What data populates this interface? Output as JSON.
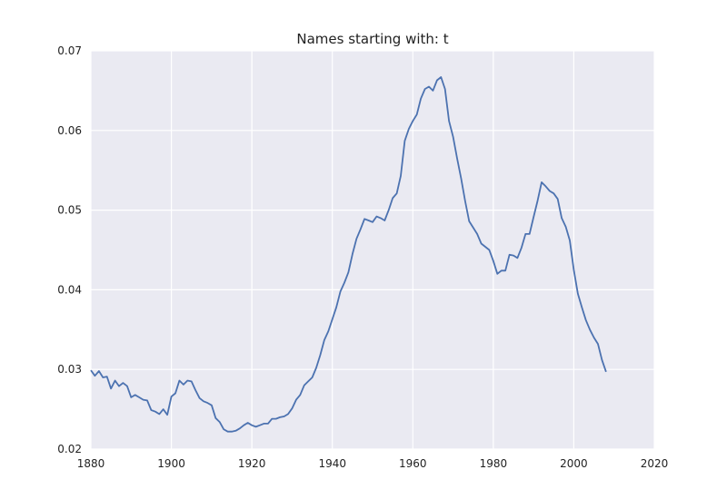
{
  "chart_data": {
    "type": "line",
    "title": "Names starting with: t",
    "xlabel": "",
    "ylabel": "",
    "xlim": [
      1880,
      2020
    ],
    "ylim": [
      0.02,
      0.07
    ],
    "x_ticks": [
      1880,
      1900,
      1920,
      1940,
      1960,
      1980,
      2000,
      2020
    ],
    "y_ticks": [
      0.02,
      0.03,
      0.04,
      0.05,
      0.06,
      0.07
    ],
    "x_tick_labels": [
      "1880",
      "1900",
      "1920",
      "1940",
      "1960",
      "1980",
      "2000",
      "2020"
    ],
    "y_tick_labels": [
      "0.02",
      "0.03",
      "0.04",
      "0.05",
      "0.06",
      "0.07"
    ],
    "grid": true,
    "plot_background": "#eaeaf2",
    "series": [
      {
        "color": "#4c72b0",
        "x": [
          1880,
          1881,
          1882,
          1883,
          1884,
          1885,
          1886,
          1887,
          1888,
          1889,
          1890,
          1891,
          1892,
          1893,
          1894,
          1895,
          1896,
          1897,
          1898,
          1899,
          1900,
          1901,
          1902,
          1903,
          1904,
          1905,
          1906,
          1907,
          1908,
          1909,
          1910,
          1911,
          1912,
          1913,
          1914,
          1915,
          1916,
          1917,
          1918,
          1919,
          1920,
          1921,
          1922,
          1923,
          1924,
          1925,
          1926,
          1927,
          1928,
          1929,
          1930,
          1931,
          1932,
          1933,
          1934,
          1935,
          1936,
          1937,
          1938,
          1939,
          1940,
          1941,
          1942,
          1943,
          1944,
          1945,
          1946,
          1947,
          1948,
          1949,
          1950,
          1951,
          1952,
          1953,
          1954,
          1955,
          1956,
          1957,
          1958,
          1959,
          1960,
          1961,
          1962,
          1963,
          1964,
          1965,
          1966,
          1967,
          1968,
          1969,
          1970,
          1971,
          1972,
          1973,
          1974,
          1975,
          1976,
          1977,
          1978,
          1979,
          1980,
          1981,
          1982,
          1983,
          1984,
          1985,
          1986,
          1987,
          1988,
          1989,
          1990,
          1991,
          1992,
          1993,
          1994,
          1995,
          1996,
          1997,
          1998,
          1999,
          2000,
          2001,
          2002,
          2003,
          2004,
          2005,
          2006,
          2007,
          2008
        ],
        "values": [
          0.0299,
          0.0292,
          0.0298,
          0.029,
          0.0291,
          0.0276,
          0.0286,
          0.0279,
          0.0283,
          0.0279,
          0.0265,
          0.0268,
          0.0265,
          0.0262,
          0.0261,
          0.0249,
          0.0247,
          0.0244,
          0.025,
          0.0243,
          0.0266,
          0.027,
          0.0286,
          0.0281,
          0.0286,
          0.0285,
          0.0274,
          0.0264,
          0.026,
          0.0258,
          0.0255,
          0.0239,
          0.0234,
          0.0225,
          0.0222,
          0.0222,
          0.0223,
          0.0226,
          0.023,
          0.0233,
          0.023,
          0.0228,
          0.023,
          0.0232,
          0.0232,
          0.0238,
          0.0238,
          0.024,
          0.0241,
          0.0244,
          0.0251,
          0.0262,
          0.0268,
          0.028,
          0.0285,
          0.029,
          0.0302,
          0.0318,
          0.0337,
          0.0348,
          0.0363,
          0.0378,
          0.0398,
          0.0409,
          0.0422,
          0.0445,
          0.0464,
          0.0476,
          0.0489,
          0.0487,
          0.0485,
          0.0492,
          0.049,
          0.0487,
          0.05,
          0.0515,
          0.0521,
          0.0543,
          0.0587,
          0.0602,
          0.0612,
          0.062,
          0.064,
          0.0652,
          0.0655,
          0.065,
          0.0663,
          0.0667,
          0.0652,
          0.0612,
          0.0592,
          0.0565,
          0.054,
          0.0511,
          0.0486,
          0.0478,
          0.047,
          0.0458,
          0.0454,
          0.045,
          0.0436,
          0.042,
          0.0424,
          0.0424,
          0.0444,
          0.0443,
          0.044,
          0.0453,
          0.047,
          0.047,
          0.0491,
          0.0512,
          0.0535,
          0.053,
          0.0524,
          0.0521,
          0.0514,
          0.049,
          0.0479,
          0.0462,
          0.0425,
          0.0395,
          0.0378,
          0.0362,
          0.035,
          0.034,
          0.0332,
          0.0312,
          0.0297
        ]
      }
    ]
  }
}
